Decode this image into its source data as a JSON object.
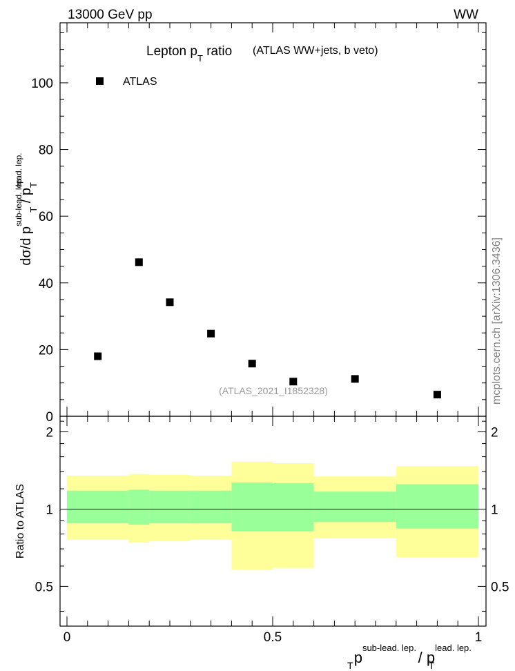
{
  "header": {
    "energy_label": "13000 GeV pp",
    "process_label": "WW",
    "side_label": "mcplots.cern.ch [arXiv:1306.3436]"
  },
  "chart_data": [
    {
      "type": "scatter",
      "title": "Lepton p",
      "title_sub": "T",
      "title_suffix": " ratio",
      "subtitle": "(ATLAS WW+jets, b veto)",
      "analysis_label": "(ATLAS_2021_I1852328)",
      "legend": [
        "ATLAS"
      ],
      "ylabel_parts": {
        "main": "dσ/d p",
        "sup1": "sub-lead. lep.",
        "sub1": "T",
        "slash": " / p",
        "sub2": "T",
        "sup2": "lead. lep."
      },
      "xlim": [
        0,
        1
      ],
      "ylim": [
        0,
        118
      ],
      "yticks": [
        0,
        20,
        40,
        60,
        80,
        100
      ],
      "series": [
        {
          "name": "ATLAS",
          "x": [
            0.075,
            0.175,
            0.25,
            0.35,
            0.45,
            0.55,
            0.7,
            0.9
          ],
          "y": [
            18.0,
            46.2,
            34.2,
            24.8,
            15.8,
            10.4,
            11.2,
            6.5
          ]
        }
      ]
    },
    {
      "type": "area",
      "ylabel": "Ratio to ATLAS",
      "xlabel_parts": {
        "p1": "p",
        "sup1": "sub-lead. lep.",
        "sub1": "T",
        "slash": " / p",
        "sup2": "lead. lep.",
        "sub2": "T"
      },
      "xlim": [
        0,
        1
      ],
      "ylim": [
        0.35,
        2.3
      ],
      "yticks": [
        0.5,
        1,
        2
      ],
      "ytick_labels": [
        "0.5",
        "1",
        "2"
      ],
      "xticks": [
        0,
        0.5,
        1
      ],
      "xtick_labels": [
        "0",
        "0.5",
        "1"
      ],
      "bins": [
        {
          "lo": 0.0,
          "hi": 0.15,
          "inner": [
            0.88,
            1.18
          ],
          "outer": [
            0.76,
            1.35
          ]
        },
        {
          "lo": 0.15,
          "hi": 0.2,
          "inner": [
            0.87,
            1.19
          ],
          "outer": [
            0.74,
            1.37
          ]
        },
        {
          "lo": 0.2,
          "hi": 0.3,
          "inner": [
            0.88,
            1.18
          ],
          "outer": [
            0.75,
            1.36
          ]
        },
        {
          "lo": 0.3,
          "hi": 0.4,
          "inner": [
            0.88,
            1.18
          ],
          "outer": [
            0.76,
            1.35
          ]
        },
        {
          "lo": 0.4,
          "hi": 0.5,
          "inner": [
            0.82,
            1.27
          ],
          "outer": [
            0.58,
            1.53
          ]
        },
        {
          "lo": 0.5,
          "hi": 0.6,
          "inner": [
            0.82,
            1.26
          ],
          "outer": [
            0.59,
            1.51
          ]
        },
        {
          "lo": 0.6,
          "hi": 0.8,
          "inner": [
            0.89,
            1.17
          ],
          "outer": [
            0.77,
            1.34
          ]
        },
        {
          "lo": 0.8,
          "hi": 1.0,
          "inner": [
            0.84,
            1.25
          ],
          "outer": [
            0.65,
            1.47
          ]
        }
      ],
      "reference": 1
    }
  ],
  "colors": {
    "inner_band": "#99ff99",
    "outer_band": "#ffff99",
    "marker": "#000000",
    "analysis_label": "#999999",
    "side_label": "#808080"
  }
}
